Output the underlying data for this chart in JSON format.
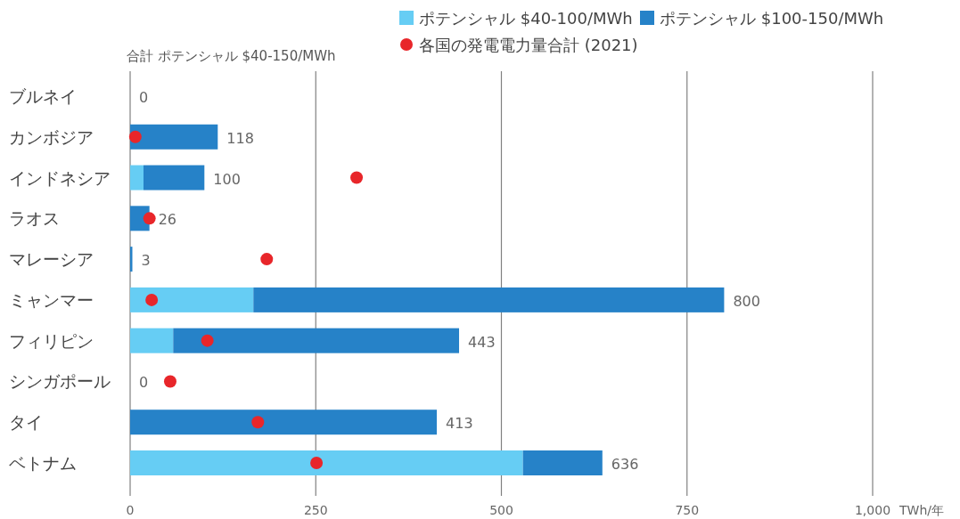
{
  "chart_data": {
    "type": "bar",
    "orientation": "horizontal",
    "stacked": true,
    "categories": [
      "ブルネイ",
      "カンボジア",
      "インドネシア",
      "ラオス",
      "マレーシア",
      "ミャンマー",
      "フィリピン",
      "シンガポール",
      "タイ",
      "ベトナム"
    ],
    "series": [
      {
        "name": "ポテンシャル $40-100/MWh",
        "color": "#66cdf4",
        "values": [
          0,
          0,
          18,
          0,
          0,
          166,
          58,
          0,
          0,
          529
        ]
      },
      {
        "name": "ポテンシャル $100-150/MWh",
        "color": "#2682c8",
        "values": [
          0,
          118,
          82,
          26,
          3,
          634,
          385,
          0,
          413,
          107
        ]
      },
      {
        "name": "各国の発電電力量合計 (2021)",
        "type": "scatter",
        "color": "#e8262a",
        "marker": "circle",
        "values": [
          null,
          7,
          305,
          26,
          184,
          29,
          104,
          54,
          172,
          251
        ]
      }
    ],
    "totals": [
      "0",
      "118",
      "100",
      "26",
      "3",
      "800",
      "443",
      "0",
      "413",
      "636"
    ],
    "xlim": [
      0,
      1000
    ],
    "xticks": [
      0,
      250,
      500,
      750,
      {
        "value": 1000,
        "label": "1,000"
      }
    ],
    "xlabel": "TWh/年",
    "grid": "x",
    "legend": "top right",
    "annotations": [
      "合計 ポテンシャル $40-150/MWh"
    ]
  }
}
